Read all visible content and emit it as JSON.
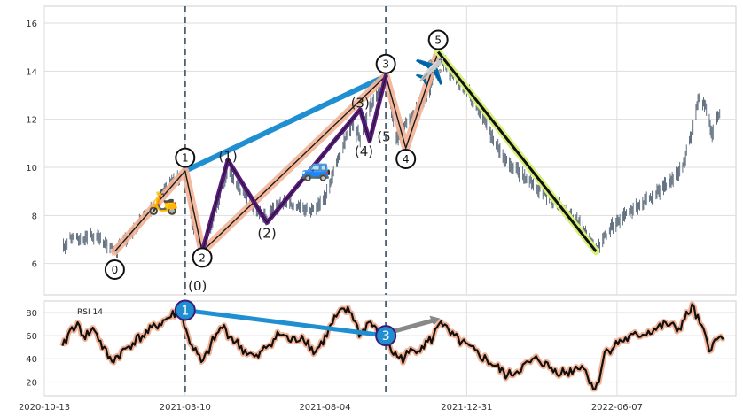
{
  "chart_data": [
    {
      "type": "line",
      "panel": "price",
      "title": "",
      "xlabel": "",
      "ylabel": "",
      "xlim": [
        "2020-10-13",
        "2022-10-10"
      ],
      "ylim": [
        4.7,
        16.7
      ],
      "yticks": [
        6,
        8,
        10,
        12,
        14,
        16
      ],
      "xticks": [
        "2020-10-13",
        "2021-03-10",
        "2021-08-04",
        "2021-12-31",
        "2022-06-07"
      ],
      "grid": true,
      "price_path": [
        [
          "2020-11-01",
          6.6
        ],
        [
          "2020-11-10",
          7.1
        ],
        [
          "2020-11-20",
          7.0
        ],
        [
          "2020-12-01",
          7.2
        ],
        [
          "2020-12-10",
          7.0
        ],
        [
          "2020-12-20",
          6.7
        ],
        [
          "2020-12-26",
          6.5
        ],
        [
          "2021-01-10",
          7.2
        ],
        [
          "2021-01-25",
          7.9
        ],
        [
          "2021-02-10",
          8.6
        ],
        [
          "2021-02-22",
          9.3
        ],
        [
          "2021-03-10",
          9.8
        ],
        [
          "2021-03-18",
          7.6
        ],
        [
          "2021-03-28",
          6.5
        ],
        [
          "2021-04-10",
          8.0
        ],
        [
          "2021-04-24",
          9.9
        ],
        [
          "2021-05-05",
          9.2
        ],
        [
          "2021-05-20",
          8.4
        ],
        [
          "2021-06-04",
          7.9
        ],
        [
          "2021-06-20",
          8.6
        ],
        [
          "2021-07-05",
          8.4
        ],
        [
          "2021-07-20",
          8.2
        ],
        [
          "2021-08-04",
          8.7
        ],
        [
          "2021-08-20",
          10.6
        ],
        [
          "2021-09-01",
          11.8
        ],
        [
          "2021-09-10",
          11.2
        ],
        [
          "2021-09-20",
          12.4
        ],
        [
          "2021-10-07",
          13.8
        ],
        [
          "2021-10-18",
          11.2
        ],
        [
          "2021-10-28",
          11.9
        ],
        [
          "2021-11-10",
          12.4
        ],
        [
          "2021-11-22",
          13.1
        ],
        [
          "2021-12-01",
          14.8
        ],
        [
          "2021-12-15",
          13.9
        ],
        [
          "2022-01-05",
          13.0
        ],
        [
          "2022-01-25",
          11.4
        ],
        [
          "2022-02-10",
          10.3
        ],
        [
          "2022-03-01",
          9.6
        ],
        [
          "2022-03-20",
          9.0
        ],
        [
          "2022-04-10",
          8.3
        ],
        [
          "2022-05-01",
          7.6
        ],
        [
          "2022-05-15",
          6.5
        ],
        [
          "2022-06-01",
          7.5
        ],
        [
          "2022-06-20",
          8.1
        ],
        [
          "2022-07-10",
          8.7
        ],
        [
          "2022-07-30",
          9.3
        ],
        [
          "2022-08-15",
          10.0
        ],
        [
          "2022-08-25",
          11.5
        ],
        [
          "2022-09-01",
          13.0
        ],
        [
          "2022-09-08",
          12.5
        ],
        [
          "2022-09-15",
          11.4
        ],
        [
          "2022-09-25",
          12.6
        ]
      ],
      "wave_labels": [
        {
          "label": "0",
          "date": "2020-12-26",
          "price": 5.75
        },
        {
          "label": "1",
          "date": "2021-03-10",
          "price": 10.4
        },
        {
          "label": "2",
          "date": "2021-03-28",
          "price": 6.25
        },
        {
          "label": "3",
          "date": "2021-10-07",
          "price": 14.3
        },
        {
          "label": "4",
          "date": "2021-10-28",
          "price": 10.35
        },
        {
          "label": "5",
          "date": "2021-12-01",
          "price": 15.3
        }
      ],
      "subwave_labels": [
        {
          "label": "(0)",
          "date": "2021-03-23",
          "price": 5.1
        },
        {
          "label": "(1)",
          "date": "2021-04-24",
          "price": 10.5
        },
        {
          "label": "(2)",
          "date": "2021-06-04",
          "price": 7.3
        },
        {
          "label": "(3)",
          "date": "2021-09-10",
          "price": 12.7
        },
        {
          "label": "(4)",
          "date": "2021-09-14",
          "price": 10.7
        },
        {
          "label": "(5",
          "date": "2021-10-05",
          "price": 11.3
        }
      ],
      "vlines": [
        "2021-03-10",
        "2021-10-07"
      ],
      "icons": [
        {
          "name": "scooter",
          "glyph": "🛵",
          "date": "2021-02-15",
          "price": 8.6
        },
        {
          "name": "car",
          "glyph": "🚙",
          "date": "2021-07-26",
          "price": 10.0
        },
        {
          "name": "airplane",
          "glyph": "✈️",
          "date": "2021-11-22",
          "price": 14.0
        }
      ]
    },
    {
      "type": "line",
      "panel": "rsi",
      "title": "",
      "series": [
        {
          "name": "RSI 14"
        }
      ],
      "ylim": [
        8,
        90
      ],
      "yticks": [
        20,
        40,
        60,
        80
      ],
      "grid": true,
      "rsi_path": [
        [
          "2020-11-01",
          48
        ],
        [
          "2020-11-08",
          63
        ],
        [
          "2020-11-15",
          70
        ],
        [
          "2020-11-25",
          60
        ],
        [
          "2020-12-05",
          66
        ],
        [
          "2020-12-12",
          52
        ],
        [
          "2020-12-22",
          38
        ],
        [
          "2021-01-02",
          45
        ],
        [
          "2021-01-15",
          55
        ],
        [
          "2021-01-28",
          62
        ],
        [
          "2021-02-10",
          70
        ],
        [
          "2021-02-25",
          78
        ],
        [
          "2021-03-05",
          83
        ],
        [
          "2021-03-12",
          60
        ],
        [
          "2021-03-20",
          48
        ],
        [
          "2021-03-28",
          35
        ],
        [
          "2021-04-08",
          55
        ],
        [
          "2021-04-18",
          68
        ],
        [
          "2021-04-28",
          58
        ],
        [
          "2021-05-10",
          48
        ],
        [
          "2021-05-24",
          40
        ],
        [
          "2021-06-05",
          52
        ],
        [
          "2021-06-18",
          62
        ],
        [
          "2021-06-30",
          55
        ],
        [
          "2021-07-12",
          60
        ],
        [
          "2021-07-24",
          45
        ],
        [
          "2021-08-04",
          58
        ],
        [
          "2021-08-14",
          74
        ],
        [
          "2021-08-24",
          82
        ],
        [
          "2021-09-01",
          80
        ],
        [
          "2021-09-10",
          60
        ],
        [
          "2021-09-20",
          73
        ],
        [
          "2021-10-01",
          58
        ],
        [
          "2021-10-07",
          62
        ],
        [
          "2021-10-14",
          45
        ],
        [
          "2021-10-24",
          40
        ],
        [
          "2021-11-04",
          47
        ],
        [
          "2021-11-16",
          52
        ],
        [
          "2021-11-26",
          58
        ],
        [
          "2021-12-03",
          75
        ],
        [
          "2021-12-12",
          62
        ],
        [
          "2021-12-24",
          55
        ],
        [
          "2022-01-10",
          45
        ],
        [
          "2022-01-28",
          35
        ],
        [
          "2022-02-12",
          25
        ],
        [
          "2022-02-28",
          33
        ],
        [
          "2022-03-16",
          40
        ],
        [
          "2022-04-01",
          30
        ],
        [
          "2022-04-16",
          28
        ],
        [
          "2022-05-01",
          35
        ],
        [
          "2022-05-12",
          18
        ],
        [
          "2022-05-16",
          12
        ],
        [
          "2022-05-25",
          45
        ],
        [
          "2022-06-10",
          55
        ],
        [
          "2022-06-28",
          60
        ],
        [
          "2022-07-15",
          65
        ],
        [
          "2022-07-30",
          70
        ],
        [
          "2022-08-10",
          65
        ],
        [
          "2022-08-20",
          78
        ],
        [
          "2022-08-25",
          85
        ],
        [
          "2022-09-02",
          70
        ],
        [
          "2022-09-12",
          50
        ],
        [
          "2022-09-20",
          55
        ],
        [
          "2022-09-28",
          62
        ]
      ],
      "markers": [
        {
          "label": "1",
          "date": "2021-03-10",
          "value": 82
        },
        {
          "label": "3",
          "date": "2021-10-07",
          "value": 60
        }
      ],
      "blue_line": [
        [
          "2021-03-10",
          82
        ],
        [
          "2021-10-07",
          60
        ]
      ],
      "gray_arrow": [
        [
          "2021-10-07",
          62
        ],
        [
          "2021-12-03",
          75
        ]
      ]
    }
  ]
}
